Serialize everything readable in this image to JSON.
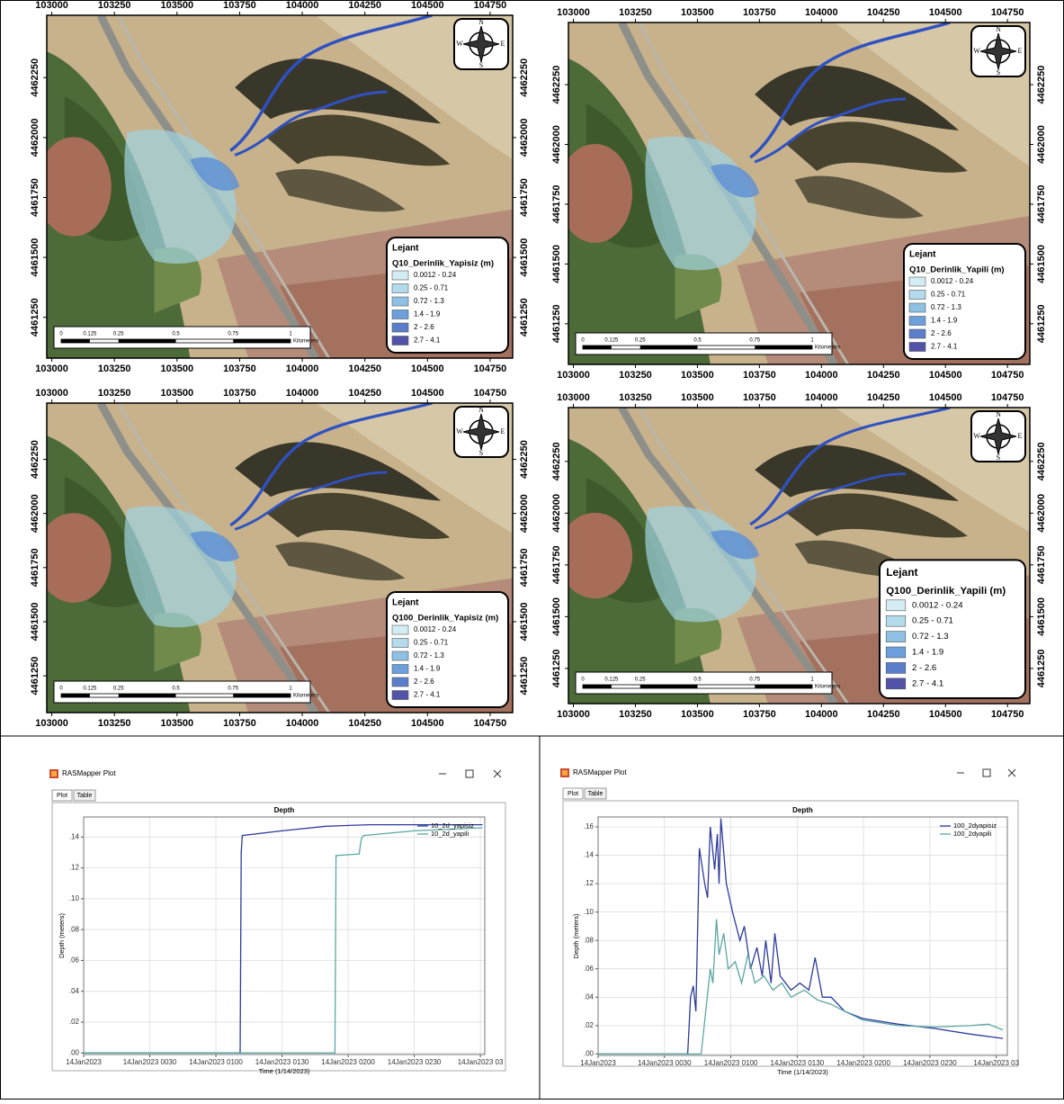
{
  "map_axes": {
    "xlim": [
      102980,
      104840
    ],
    "ylim": [
      4461080,
      4462510
    ],
    "xticks": [
      103000,
      103250,
      103500,
      103750,
      104000,
      104250,
      104500,
      104750
    ],
    "yticks": [
      4461250,
      4461500,
      4461750,
      4462000,
      4462250
    ]
  },
  "compass_labels": [
    "N",
    "E",
    "S",
    "W"
  ],
  "scale_bar": {
    "labels": [
      "0",
      "0.125",
      "0.25",
      "0.5",
      "0.75",
      "1"
    ],
    "unit": "Kilometers"
  },
  "legend_heading": "Lejant",
  "legend_classes": [
    {
      "label": "0.0012 - 0.24",
      "color": "#d4edf4"
    },
    {
      "label": "0.25 - 0.71",
      "color": "#b3dbeb"
    },
    {
      "label": "0.72 - 1.3",
      "color": "#8ec1e4"
    },
    {
      "label": "1.4 - 1.9",
      "color": "#6c9fdb"
    },
    {
      "label": "2 - 2.6",
      "color": "#5b7ecb"
    },
    {
      "label": "2.7 - 4.1",
      "color": "#5253a8"
    }
  ],
  "maps": [
    {
      "legend_title": "Q10_Derinlik_Yapisiz (m)"
    },
    {
      "legend_title": "Q10_Derinlik_Yapili (m)"
    },
    {
      "legend_title": "Q100_Derinlik_Yapisiz (m)"
    },
    {
      "legend_title": "Q100_Derinlik_Yapili (m)"
    }
  ],
  "chart_data": [
    {
      "type": "line",
      "window_title": "RASMapper Plot",
      "tabs": [
        "Plot",
        "Table"
      ],
      "title": "Depth",
      "xlabel": "Time (1/14/2023)",
      "ylabel": "Depth (meters)",
      "xlim": [
        0,
        182
      ],
      "ylim": [
        -0.001,
        0.153
      ],
      "xticks": [
        {
          "value": 0,
          "label": "14Jan2023"
        },
        {
          "value": 30,
          "label": "14Jan2023 0030"
        },
        {
          "value": 60,
          "label": "14Jan2023 0100"
        },
        {
          "value": 90,
          "label": "14Jan2023 0130"
        },
        {
          "value": 120,
          "label": "14Jan2023 0200"
        },
        {
          "value": 150,
          "label": "14Jan2023 0230"
        },
        {
          "value": 180,
          "label": "14Jan2023 03"
        }
      ],
      "yticks": [
        {
          "value": 0,
          "label": ".00"
        },
        {
          "value": 0.02,
          "label": ".02"
        },
        {
          "value": 0.04,
          "label": ".04"
        },
        {
          "value": 0.06,
          "label": ".06"
        },
        {
          "value": 0.08,
          "label": ".08"
        },
        {
          "value": 0.1,
          "label": ".10"
        },
        {
          "value": 0.12,
          "label": ".12"
        },
        {
          "value": 0.14,
          "label": ".14"
        }
      ],
      "grid": true,
      "legend": "upper right",
      "series": [
        {
          "name": "10_2d_yapisiz",
          "color": "#2e3b9c",
          "x": [
            0,
            71,
            71.5,
            72,
            90,
            110,
            130,
            150,
            181
          ],
          "values": [
            0,
            0,
            0.13,
            0.141,
            0.144,
            0.147,
            0.148,
            0.148,
            0.148
          ]
        },
        {
          "name": "10_2d_yapili",
          "color": "#5aa7a2",
          "x": [
            0,
            114,
            114.5,
            125,
            126,
            127,
            150,
            181
          ],
          "values": [
            0,
            0,
            0.128,
            0.129,
            0.139,
            0.141,
            0.144,
            0.146
          ]
        }
      ]
    },
    {
      "type": "line",
      "window_title": "RASMapper Plot",
      "tabs": [
        "Plot",
        "Table"
      ],
      "title": "Depth",
      "xlabel": "Time (1/14/2023)",
      "ylabel": "Depth (meters)",
      "xlim": [
        0,
        185
      ],
      "ylim": [
        -0.001,
        0.167
      ],
      "xticks": [
        {
          "value": 0,
          "label": "14Jan2023"
        },
        {
          "value": 30,
          "label": "14Jan2023 0030"
        },
        {
          "value": 60,
          "label": "14Jan2023 0100"
        },
        {
          "value": 90,
          "label": "14Jan2023 0130"
        },
        {
          "value": 120,
          "label": "14Jan2023 0200"
        },
        {
          "value": 150,
          "label": "14Jan2023 0230"
        },
        {
          "value": 180,
          "label": "14Jan2023 03"
        }
      ],
      "yticks": [
        {
          "value": 0,
          "label": ".00"
        },
        {
          "value": 0.02,
          "label": ".02"
        },
        {
          "value": 0.04,
          "label": ".04"
        },
        {
          "value": 0.06,
          "label": ".06"
        },
        {
          "value": 0.08,
          "label": ".08"
        },
        {
          "value": 0.1,
          "label": ".10"
        },
        {
          "value": 0.12,
          "label": ".12"
        },
        {
          "value": 0.14,
          "label": ".14"
        },
        {
          "value": 0.16,
          "label": ".16"
        }
      ],
      "grid": true,
      "legend": "upper right",
      "series": [
        {
          "name": "100_2dyapisiz",
          "color": "#2e3b9c",
          "x": [
            0,
            40.5,
            41.8,
            43,
            44.2,
            45.8,
            48.2,
            49.5,
            50.7,
            52.7,
            53.9,
            54.7,
            55.5,
            58,
            60.8,
            64.1,
            66.1,
            68.9,
            71.8,
            74.2,
            75.8,
            78.2,
            79.9,
            82.3,
            87.2,
            91.2,
            95.3,
            98.1,
            101.4,
            105.4,
            111.5,
            119.6,
            135.8,
            152,
            168.2,
            183
          ],
          "values": [
            0,
            0,
            0.04,
            0.048,
            0.03,
            0.145,
            0.12,
            0.11,
            0.16,
            0.13,
            0.155,
            0.12,
            0.166,
            0.12,
            0.1,
            0.08,
            0.09,
            0.06,
            0.075,
            0.055,
            0.08,
            0.05,
            0.085,
            0.055,
            0.045,
            0.05,
            0.045,
            0.068,
            0.04,
            0.04,
            0.03,
            0.025,
            0.021,
            0.018,
            0.014,
            0.011
          ]
        },
        {
          "name": "100_2dyapili",
          "color": "#5aa7a2",
          "x": [
            0,
            46.6,
            50.7,
            51.9,
            53.5,
            54.7,
            56.8,
            58.8,
            62,
            64.9,
            67.7,
            70.9,
            75,
            79,
            83.1,
            87.2,
            93.2,
            99.3,
            105.4,
            111.5,
            119.6,
            135.8,
            152,
            168.2,
            176.4,
            183
          ],
          "values": [
            0,
            0,
            0.06,
            0.05,
            0.095,
            0.07,
            0.085,
            0.06,
            0.065,
            0.05,
            0.07,
            0.05,
            0.055,
            0.045,
            0.05,
            0.04,
            0.045,
            0.038,
            0.035,
            0.03,
            0.024,
            0.02,
            0.019,
            0.02,
            0.021,
            0.017
          ]
        }
      ]
    }
  ]
}
